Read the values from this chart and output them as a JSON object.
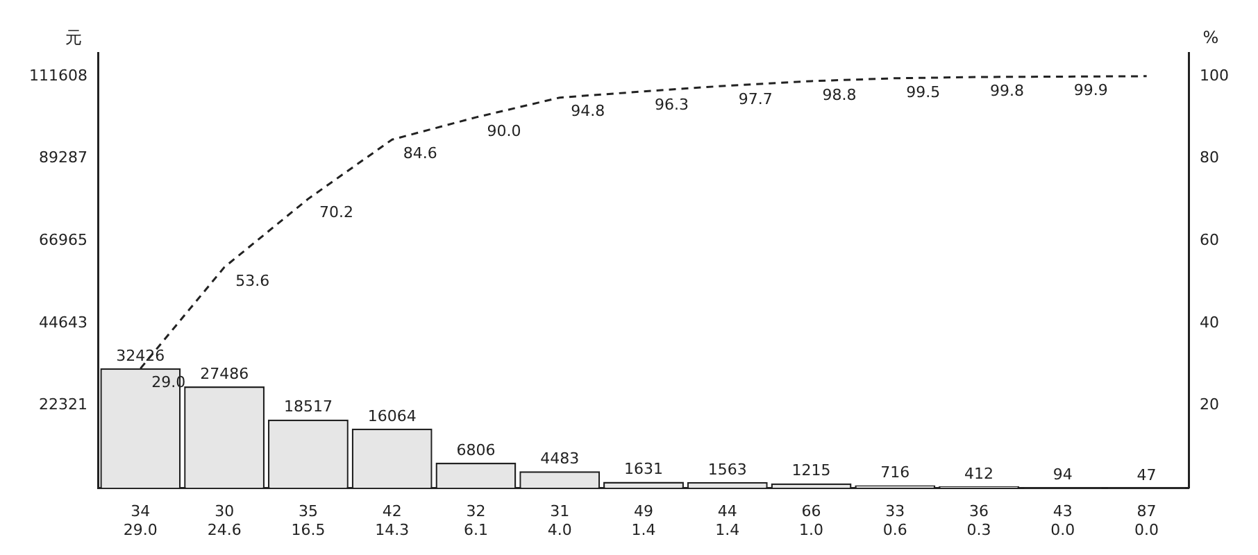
{
  "chart_data": {
    "type": "bar",
    "categories": [
      "34\n29.0",
      "30\n24.6",
      "35\n16.5",
      "42\n14.3",
      "32\n6.1",
      "31\n4.0",
      "49\n1.4",
      "44\n1.4",
      "66\n1.0",
      "33\n0.6",
      "36\n0.3",
      "43\n0.0",
      "87\n0.0"
    ],
    "ylabel": "元",
    "y2label": "%",
    "series": [
      {
        "color": "#e6e6e6",
        "values": [
          32426,
          27486,
          18517,
          16064,
          6806,
          4483,
          1631,
          1563,
          1215,
          716,
          412,
          94,
          47
        ]
      },
      {
        "type": "line",
        "axis": "y2",
        "color": "#222222",
        "line_style": "dashed",
        "marker": "none",
        "values": [
          29.0,
          53.6,
          70.2,
          84.6,
          90.0,
          94.8,
          96.3,
          97.7,
          98.8,
          99.5,
          99.8,
          99.9,
          100
        ],
        "value_labels": [
          "29.0",
          "53.6",
          "70.2",
          "84.6",
          "90.0",
          "94.8",
          "96.3",
          "97.7",
          "98.8",
          "99.5",
          "99.8",
          "99.9",
          null
        ]
      }
    ],
    "ylim": [
      0,
      118000
    ],
    "yticks": [
      22321,
      44643,
      66965,
      89287,
      111608
    ],
    "y2lim": [
      0,
      105.7
    ],
    "y2ticks": [
      20,
      40,
      60,
      80,
      100
    ],
    "data_labels": true,
    "grid": false,
    "legend": false
  }
}
